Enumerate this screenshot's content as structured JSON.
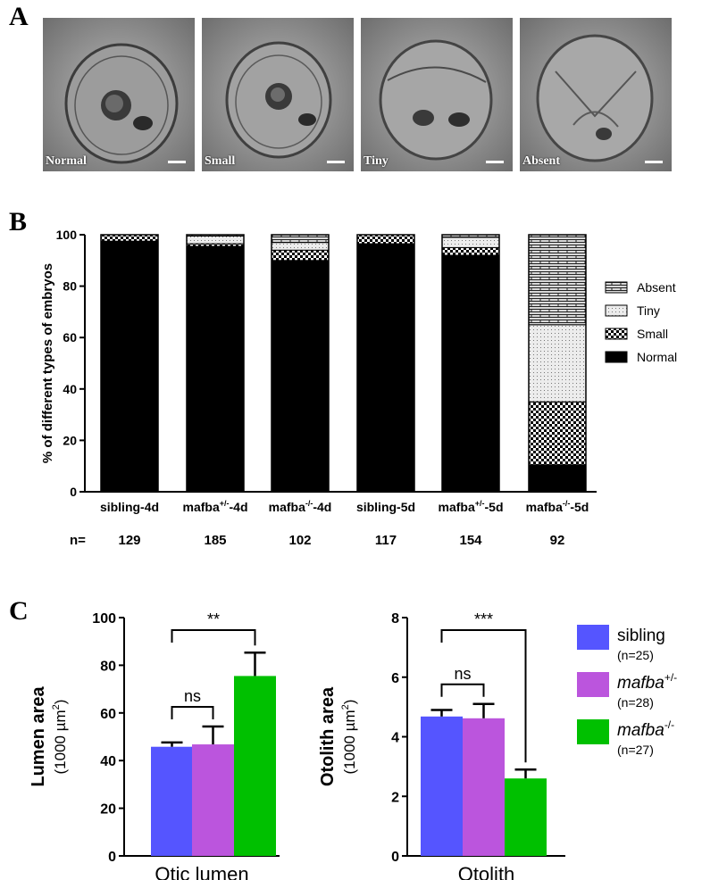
{
  "panel_labels": {
    "a": "A",
    "b": "B",
    "c": "C"
  },
  "panel_a": {
    "images": [
      {
        "label": "Normal"
      },
      {
        "label": "Small"
      },
      {
        "label": "Tiny"
      },
      {
        "label": "Absent"
      }
    ]
  },
  "colors": {
    "normal": "#000000",
    "sibling": "#5555ff",
    "mafba_het": "#bb55dd",
    "mafba_hom": "#00c000"
  },
  "chart_data": [
    {
      "type": "bar",
      "stacked": true,
      "ylabel": "% of different  types of embryos",
      "ylim": [
        0,
        100
      ],
      "yticks": [
        0,
        20,
        40,
        60,
        80,
        100
      ],
      "categories": [
        {
          "base": "sibling-4d"
        },
        {
          "base": "mafba",
          "sup": "+/-",
          "suffix": "-4d"
        },
        {
          "base": "mafba",
          "sup": "-/-",
          "suffix": "-4d"
        },
        {
          "base": "sibling-5d"
        },
        {
          "base": "mafba",
          "sup": "+/-",
          "suffix": "-5d"
        },
        {
          "base": "mafba",
          "sup": "-/-",
          "suffix": "-5d"
        }
      ],
      "n_label": "n=",
      "n_values": [
        "129",
        "185",
        "102",
        "117",
        "154",
        "92"
      ],
      "series": [
        {
          "name": "Normal",
          "pattern": "solid",
          "values": [
            97.5,
            95.5,
            90,
            96.5,
            92,
            10.5
          ]
        },
        {
          "name": "Small",
          "pattern": "checker",
          "values": [
            2.5,
            1,
            4,
            3.5,
            3,
            24.5
          ]
        },
        {
          "name": "Tiny",
          "pattern": "dots",
          "values": [
            0,
            3,
            3,
            0,
            4,
            30
          ]
        },
        {
          "name": "Absent",
          "pattern": "bricks",
          "values": [
            0,
            0.5,
            3,
            0,
            1,
            35
          ]
        }
      ],
      "legend_position": "right"
    },
    {
      "type": "bar",
      "title": "",
      "ylabel": "Lumen area",
      "ylabel_unit": "(1000 µm",
      "ylabel_unit_sup": "2",
      "ylabel_unit_end": ")",
      "xlabel": "Otic lumen",
      "ylim": [
        0,
        100
      ],
      "yticks": [
        0,
        20,
        40,
        60,
        80,
        100
      ],
      "series": [
        {
          "name": "sibling",
          "value": 45.8,
          "error": 1.8
        },
        {
          "name": "mafba+/-",
          "value": 46.8,
          "error": 7.5
        },
        {
          "name": "mafba-/-",
          "value": 75.5,
          "error": 9.8
        }
      ],
      "significance": [
        {
          "label": "ns",
          "from": 0,
          "to": 1
        },
        {
          "label": "**",
          "from": 0,
          "to": 2
        }
      ]
    },
    {
      "type": "bar",
      "title": "",
      "ylabel": "Otolith area",
      "ylabel_unit": "(1000 µm",
      "ylabel_unit_sup": "2",
      "ylabel_unit_end": ")",
      "xlabel": "Otolith",
      "ylim": [
        0,
        8
      ],
      "yticks": [
        0,
        2,
        4,
        6,
        8
      ],
      "series": [
        {
          "name": "sibling",
          "value": 4.68,
          "error": 0.22
        },
        {
          "name": "mafba+/-",
          "value": 4.62,
          "error": 0.48
        },
        {
          "name": "mafba-/-",
          "value": 2.6,
          "error": 0.3
        }
      ],
      "significance": [
        {
          "label": "ns",
          "from": 0,
          "to": 1
        },
        {
          "label": "***",
          "from": 0,
          "to": 2
        }
      ]
    }
  ],
  "legend_c": [
    {
      "name": "sibling",
      "italic": false,
      "base": "sibling",
      "sup": "",
      "n": "(n=25)",
      "color": "#5555ff"
    },
    {
      "name": "mafba+/-",
      "italic": true,
      "base": "mafba",
      "sup": "+/-",
      "n": "(n=28)",
      "color": "#bb55dd"
    },
    {
      "name": "mafba-/-",
      "italic": true,
      "base": "mafba",
      "sup": "-/-",
      "n": "(n=27)",
      "color": "#00c000"
    }
  ]
}
